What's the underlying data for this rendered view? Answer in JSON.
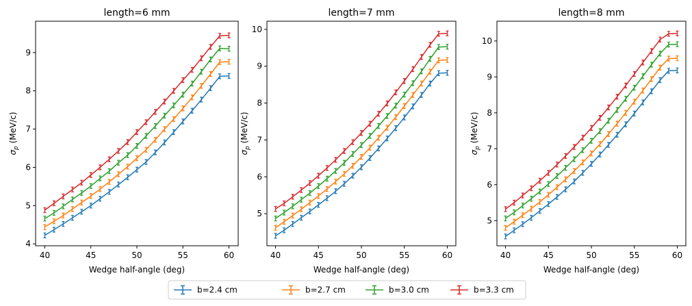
{
  "chart_data": [
    {
      "type": "line",
      "title": "length=6 mm",
      "xlabel": "Wedge half-angle (deg)",
      "ylabel": "σp (MeV/c)",
      "xlim": [
        39.0,
        61.0
      ],
      "ylim": [
        3.95,
        9.82
      ],
      "xticks": [
        40,
        45,
        50,
        55,
        60
      ],
      "yticks": [
        4,
        5,
        6,
        7,
        8,
        9
      ],
      "x": [
        40,
        41,
        42,
        43,
        44,
        45,
        46,
        47,
        48,
        49,
        50,
        51,
        52,
        53,
        54,
        55,
        56,
        57,
        58,
        59,
        60
      ],
      "series": [
        {
          "name": "b=2.4 cm",
          "color": "#1f77b4",
          "values": [
            4.22,
            4.37,
            4.52,
            4.68,
            4.84,
            5.0,
            5.18,
            5.36,
            5.55,
            5.74,
            5.94,
            6.14,
            6.39,
            6.65,
            6.92,
            7.2,
            7.48,
            7.77,
            8.07,
            8.38,
            8.39
          ]
        },
        {
          "name": "b=2.7 cm",
          "color": "#ff7f0e",
          "values": [
            4.44,
            4.59,
            4.74,
            4.91,
            5.08,
            5.25,
            5.43,
            5.62,
            5.82,
            6.02,
            6.24,
            6.46,
            6.72,
            7.0,
            7.26,
            7.54,
            7.83,
            8.13,
            8.44,
            8.75,
            8.76
          ]
        },
        {
          "name": "b=3.0 cm",
          "color": "#2ca02c",
          "values": [
            4.66,
            4.81,
            4.98,
            5.16,
            5.33,
            5.51,
            5.71,
            5.9,
            6.12,
            6.32,
            6.56,
            6.82,
            7.08,
            7.35,
            7.62,
            7.9,
            8.19,
            8.5,
            8.82,
            9.11,
            9.1
          ]
        },
        {
          "name": "b=3.3 cm",
          "color": "#d62728",
          "values": [
            4.88,
            5.06,
            5.24,
            5.42,
            5.6,
            5.8,
            6.0,
            6.21,
            6.43,
            6.66,
            6.92,
            7.18,
            7.45,
            7.72,
            8.0,
            8.28,
            8.55,
            8.85,
            9.15,
            9.44,
            9.45
          ]
        }
      ]
    },
    {
      "type": "line",
      "title": "length=7 mm",
      "xlabel": "Wedge half-angle (deg)",
      "ylabel": "σp (MeV/c)",
      "xlim": [
        39.0,
        61.0
      ],
      "ylim": [
        4.13,
        10.22
      ],
      "xticks": [
        40,
        45,
        50,
        55,
        60
      ],
      "yticks": [
        5,
        6,
        7,
        8,
        9,
        10
      ],
      "x": [
        40,
        41,
        42,
        43,
        44,
        45,
        46,
        47,
        48,
        49,
        50,
        51,
        52,
        53,
        54,
        55,
        56,
        57,
        58,
        59,
        60
      ],
      "series": [
        {
          "name": "b=2.4 cm",
          "color": "#1f77b4",
          "values": [
            4.4,
            4.55,
            4.72,
            4.89,
            5.06,
            5.24,
            5.42,
            5.61,
            5.81,
            6.03,
            6.26,
            6.51,
            6.77,
            7.04,
            7.32,
            7.61,
            7.91,
            8.22,
            8.53,
            8.81,
            8.82
          ]
        },
        {
          "name": "b=2.7 cm",
          "color": "#ff7f0e",
          "values": [
            4.62,
            4.78,
            4.95,
            5.12,
            5.3,
            5.48,
            5.67,
            5.87,
            6.08,
            6.3,
            6.54,
            6.79,
            7.06,
            7.33,
            7.62,
            7.92,
            8.22,
            8.53,
            8.85,
            9.16,
            9.17
          ]
        },
        {
          "name": "b=3.0 cm",
          "color": "#2ca02c",
          "values": [
            4.87,
            5.03,
            5.2,
            5.38,
            5.56,
            5.75,
            5.95,
            6.16,
            6.38,
            6.62,
            6.86,
            7.11,
            7.38,
            7.65,
            7.93,
            8.23,
            8.54,
            8.86,
            9.2,
            9.52,
            9.53
          ]
        },
        {
          "name": "b=3.3 cm",
          "color": "#d62728",
          "values": [
            5.13,
            5.28,
            5.46,
            5.64,
            5.83,
            6.03,
            6.24,
            6.46,
            6.7,
            6.94,
            7.19,
            7.44,
            7.71,
            7.99,
            8.29,
            8.6,
            8.92,
            9.25,
            9.58,
            9.88,
            9.89
          ]
        }
      ]
    },
    {
      "type": "line",
      "title": "length=8 mm",
      "xlabel": "Wedge half-angle (deg)",
      "ylabel": "σp (MeV/c)",
      "xlim": [
        39.0,
        61.0
      ],
      "ylim": [
        4.3,
        10.55
      ],
      "xticks": [
        40,
        45,
        50,
        55,
        60
      ],
      "yticks": [
        5,
        6,
        7,
        8,
        9,
        10
      ],
      "x": [
        40,
        41,
        42,
        43,
        44,
        45,
        46,
        47,
        48,
        49,
        50,
        51,
        52,
        53,
        54,
        55,
        56,
        57,
        58,
        59,
        60
      ],
      "series": [
        {
          "name": "b=2.4 cm",
          "color": "#1f77b4",
          "values": [
            4.56,
            4.73,
            4.9,
            5.08,
            5.27,
            5.46,
            5.66,
            5.87,
            6.09,
            6.33,
            6.58,
            6.84,
            7.11,
            7.39,
            7.68,
            7.98,
            8.29,
            8.6,
            8.91,
            9.17,
            9.18
          ]
        },
        {
          "name": "b=2.7 cm",
          "color": "#ff7f0e",
          "values": [
            4.8,
            4.97,
            5.15,
            5.33,
            5.52,
            5.72,
            5.93,
            6.15,
            6.38,
            6.62,
            6.87,
            7.13,
            7.41,
            7.7,
            8.0,
            8.31,
            8.62,
            8.94,
            9.26,
            9.51,
            9.52
          ]
        },
        {
          "name": "b=3.0 cm",
          "color": "#2ca02c",
          "values": [
            5.06,
            5.23,
            5.42,
            5.61,
            5.81,
            6.02,
            6.24,
            6.47,
            6.71,
            6.96,
            7.22,
            7.49,
            7.78,
            8.08,
            8.39,
            8.7,
            9.02,
            9.34,
            9.65,
            9.9,
            9.91
          ]
        },
        {
          "name": "b=3.3 cm",
          "color": "#d62728",
          "values": [
            5.32,
            5.5,
            5.7,
            5.9,
            6.11,
            6.33,
            6.56,
            6.8,
            7.05,
            7.31,
            7.58,
            7.86,
            8.15,
            8.45,
            8.76,
            9.08,
            9.4,
            9.72,
            10.04,
            10.2,
            10.21
          ]
        }
      ]
    }
  ],
  "legend": {
    "placement": "bottom-center",
    "entries": [
      {
        "label": "b=2.4 cm",
        "color": "#1f77b4"
      },
      {
        "label": "b=2.7 cm",
        "color": "#ff7f0e"
      },
      {
        "label": "b=3.0 cm",
        "color": "#2ca02c"
      },
      {
        "label": "b=3.3 cm",
        "color": "#d62728"
      }
    ]
  }
}
